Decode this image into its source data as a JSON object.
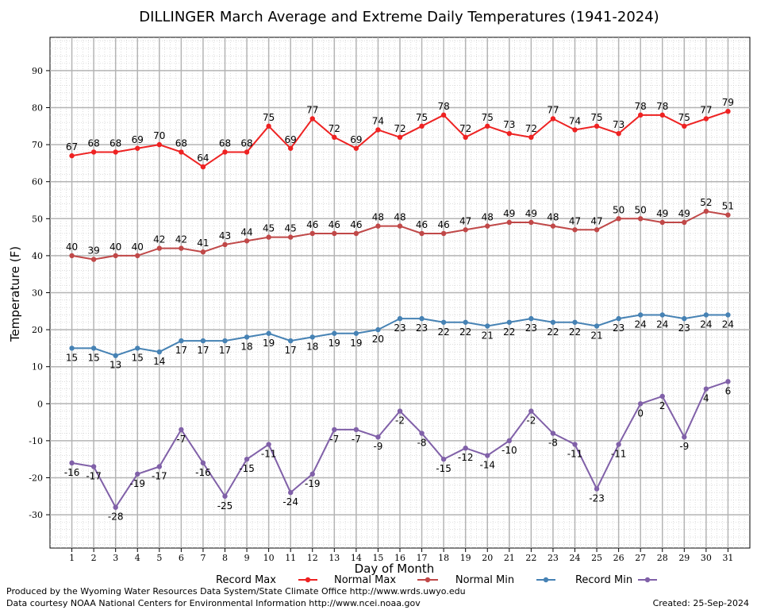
{
  "chart_data": {
    "type": "line",
    "title": "DILLINGER March Average and Extreme Daily Temperatures (1941-2024)",
    "xlabel": "Day of Month",
    "ylabel": "Temperature (F)",
    "ylim": [
      -39,
      99
    ],
    "yticks": [
      -30,
      -20,
      -10,
      0,
      10,
      20,
      30,
      40,
      50,
      60,
      70,
      80,
      90
    ],
    "x": [
      1,
      2,
      3,
      4,
      5,
      6,
      7,
      8,
      9,
      10,
      11,
      12,
      13,
      14,
      15,
      16,
      17,
      18,
      19,
      20,
      21,
      22,
      23,
      24,
      25,
      26,
      27,
      28,
      29,
      30,
      31
    ],
    "grid": true,
    "legend_position": "bottom",
    "series": [
      {
        "name": "Record Max",
        "color": "#ee2222",
        "label_position": "above",
        "values": [
          67,
          68,
          68,
          69,
          70,
          68,
          64,
          68,
          68,
          75,
          69,
          77,
          72,
          69,
          74,
          72,
          75,
          78,
          72,
          75,
          73,
          72,
          77,
          74,
          75,
          73,
          78,
          78,
          75,
          77,
          79
        ]
      },
      {
        "name": "Normal Max",
        "color": "#c04848",
        "label_position": "above",
        "values": [
          40,
          39,
          40,
          40,
          42,
          42,
          41,
          43,
          44,
          45,
          45,
          46,
          46,
          46,
          48,
          48,
          46,
          46,
          47,
          48,
          49,
          49,
          48,
          47,
          47,
          50,
          50,
          49,
          49,
          52,
          51
        ]
      },
      {
        "name": "Normal Min",
        "color": "#4682b4",
        "label_position": "below",
        "values": [
          15,
          15,
          13,
          15,
          14,
          17,
          17,
          17,
          18,
          19,
          17,
          18,
          19,
          19,
          20,
          23,
          23,
          22,
          22,
          21,
          22,
          23,
          22,
          22,
          21,
          23,
          24,
          24,
          23,
          24,
          24
        ]
      },
      {
        "name": "Record Min",
        "color": "#8060a8",
        "label_position": "below",
        "values": [
          -16,
          -17,
          -28,
          -19,
          -17,
          -7,
          -16,
          -25,
          -15,
          -11,
          -24,
          -19,
          -7,
          -7,
          -9,
          -2,
          -8,
          -15,
          -12,
          -14,
          -10,
          -2,
          -8,
          -11,
          -23,
          -11,
          0,
          2,
          -9,
          4,
          6
        ]
      }
    ]
  },
  "footer": {
    "produced_by": "Produced by the Wyoming Water Resources Data System/State Climate Office http://www.wrds.uwyo.edu",
    "courtesy": "Data courtesy NOAA National Centers for Environmental Information http://www.ncei.noaa.gov",
    "created": "Created:  25-Sep-2024"
  }
}
